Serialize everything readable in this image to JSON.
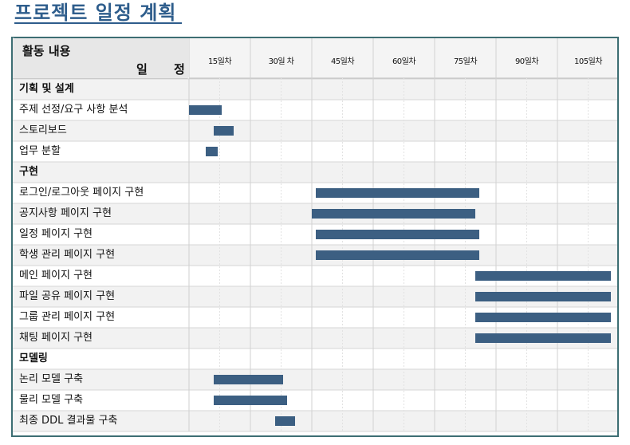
{
  "title": "프로젝트 일정 계획",
  "header": {
    "activity_label": "활동 내용",
    "schedule_label": "일 정",
    "columns": [
      "15일차",
      "30일 차",
      "45일차",
      "60일차",
      "75일차",
      "90일차",
      "105일차"
    ]
  },
  "colors": {
    "bar": "#3c5f82",
    "title": "#2e5d8c",
    "frame": "#3d6e73",
    "header_bg": "#e7e7e7",
    "row_alt_bg": "#f2f2f2"
  },
  "rows": [
    {
      "label": "기획 및 설계",
      "section": true
    },
    {
      "label": "주제 선정/요구 사항 분석",
      "start": 0,
      "end": 8
    },
    {
      "label": "스토리보드",
      "start": 6,
      "end": 11
    },
    {
      "label": "업무 분할",
      "start": 4,
      "end": 7
    },
    {
      "label": "구현",
      "section": true
    },
    {
      "label": "로그인/로그아웃 페이지 구현",
      "start": 31,
      "end": 71
    },
    {
      "label": "공지사항 페이지 구현",
      "start": 30,
      "end": 70
    },
    {
      "label": "일정 페이지 구현",
      "start": 31,
      "end": 71
    },
    {
      "label": "학생 관리 페이지 구현",
      "start": 31,
      "end": 71
    },
    {
      "label": "메인 페이지 구현",
      "start": 70,
      "end": 110
    },
    {
      "label": "파일 공유 페이지 구현",
      "start": 70,
      "end": 110
    },
    {
      "label": "그룹 관리 페이지 구현",
      "start": 70,
      "end": 110
    },
    {
      "label": "채팅 페이지 구현",
      "start": 70,
      "end": 110
    },
    {
      "label": "모델링",
      "section": true
    },
    {
      "label": "논리 모델 구축",
      "start": 6,
      "end": 23
    },
    {
      "label": "물리 모델 구축",
      "start": 6,
      "end": 24
    },
    {
      "label": "최종 DDL 결과물 구축",
      "start": 21,
      "end": 26
    }
  ]
}
